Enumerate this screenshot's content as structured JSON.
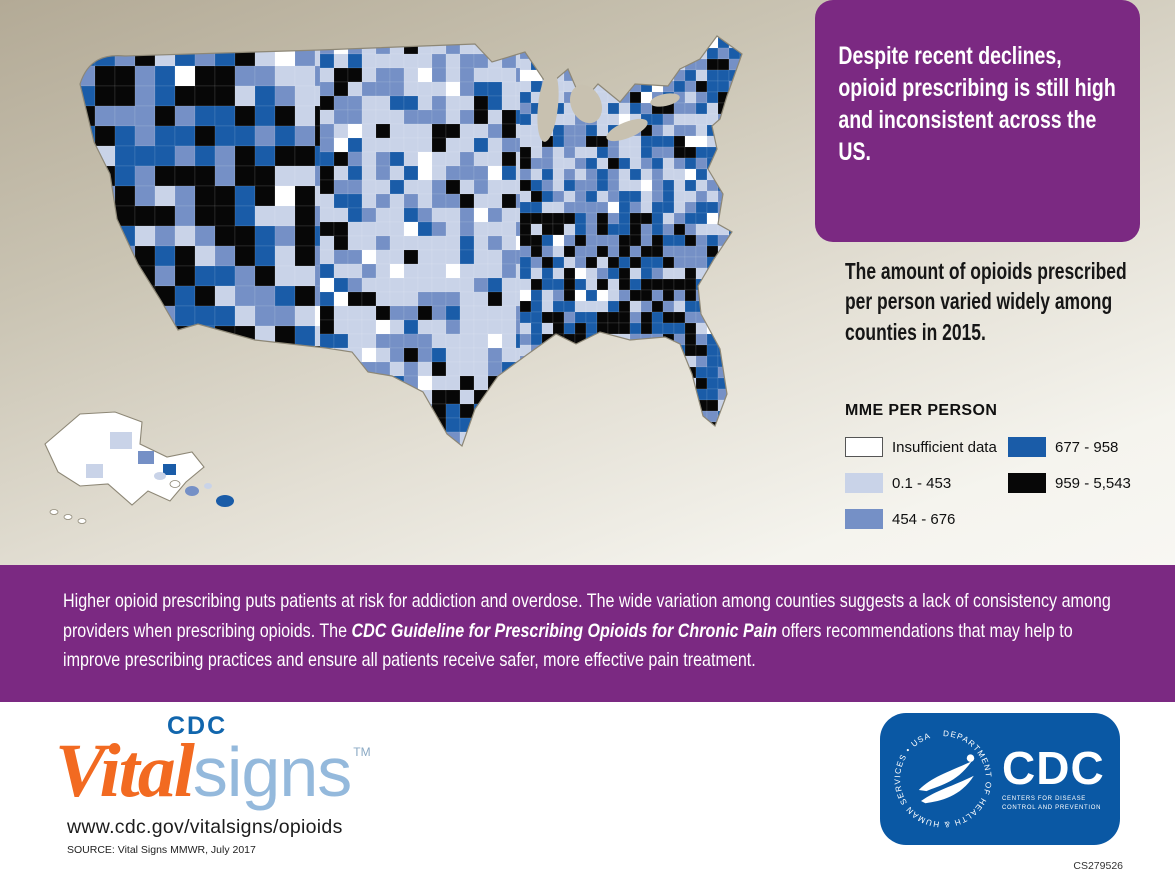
{
  "headline": "Despite recent declines, opioid prescribing is still high and inconsistent across the US.",
  "subheadline": "The amount of opioids prescribed per person varied widely among counties in 2015.",
  "chart_data": {
    "type": "heatmap",
    "subtype": "choropleth-us-counties",
    "title": "MME PER PERSON",
    "unit": "MME per person",
    "year": "2015",
    "region": "United States counties (including Alaska and Hawaii insets)",
    "bins": [
      {
        "label": "Insufficient data",
        "color": "#ffffff"
      },
      {
        "label": "0.1 - 453",
        "color": "#c9d3e8"
      },
      {
        "label": "454 - 676",
        "color": "#7590c6"
      },
      {
        "label": "677 - 958",
        "color": "#1a5ca8"
      },
      {
        "label": "959 - 5,543",
        "color": "#070707"
      }
    ],
    "legend_position": "right",
    "notes": "County-level map; darkest bins cluster in the West (Nevada/California), Appalachia and the South; lightest bins across the Great Plains."
  },
  "banner": {
    "text_before": "Higher opioid prescribing puts patients at risk for addiction and overdose. The wide variation among counties suggests a lack of consistency among providers when prescribing opioids. The ",
    "highlight": "CDC Guideline for Prescribing Opioids for Chronic Pain",
    "text_after": " offers recommendations that may help to improve prescribing practices and ensure all patients receive safer, more effective pain treatment."
  },
  "footer": {
    "logo_cdc": "CDC",
    "logo_vital": "Vital",
    "logo_signs": "signs",
    "logo_tm": "TM",
    "url": "www.cdc.gov/vitalsigns/opioids",
    "source": "SOURCE: Vital Signs MMWR, July 2017",
    "doc_code": "CS279526",
    "hhs_cdc_badge": {
      "cdc_acronym": "CDC",
      "cdc_tagline": "CENTERS FOR DISEASE CONTROL AND PREVENTION",
      "hhs_ring_text": "DEPARTMENT OF HEALTH & HUMAN SERVICES • USA"
    }
  },
  "colors": {
    "purple": "#7b2982",
    "background_top": "#b3aa96",
    "background_bottom": "#f8f7f3",
    "map_outline": "#8d8776",
    "lakes": "#c8c1b0",
    "logo_orange": "#f26a21",
    "logo_lightblue": "#94b9dc",
    "cdc_blue": "#0a58a4"
  }
}
